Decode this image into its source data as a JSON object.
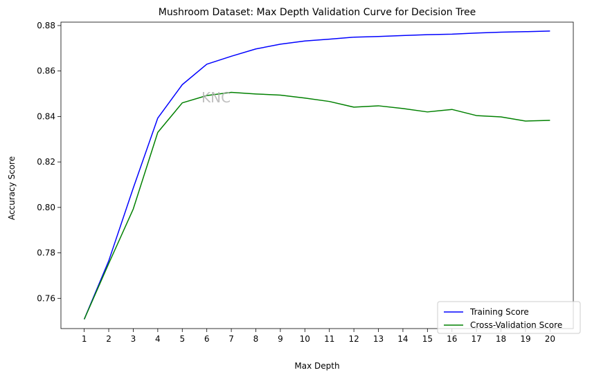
{
  "chart_data": {
    "type": "line",
    "title": "Mushroom Dataset: Max Depth Validation Curve for Decision Tree",
    "xlabel": "Max Depth",
    "ylabel": "Accuracy Score",
    "x": [
      1,
      2,
      3,
      4,
      5,
      6,
      7,
      8,
      9,
      10,
      11,
      12,
      13,
      14,
      15,
      16,
      17,
      18,
      19,
      20
    ],
    "xlim": [
      0.05,
      20.95
    ],
    "ylim": [
      0.7467,
      0.8815
    ],
    "yticks": [
      0.76,
      0.78,
      0.8,
      0.82,
      0.84,
      0.86,
      0.88
    ],
    "ytick_labels": [
      "0.76",
      "0.78",
      "0.80",
      "0.82",
      "0.84",
      "0.86",
      "0.88"
    ],
    "grid": false,
    "legend_position": "lower-right",
    "annotation": "KNC",
    "series": [
      {
        "name": "Training Score",
        "color": "#0000ff",
        "values": [
          0.7508,
          0.7765,
          0.8085,
          0.8393,
          0.854,
          0.863,
          0.8665,
          0.8697,
          0.8718,
          0.8732,
          0.874,
          0.8749,
          0.8752,
          0.8756,
          0.876,
          0.8762,
          0.8767,
          0.8771,
          0.8773,
          0.8776
        ]
      },
      {
        "name": "Cross-Validation Score",
        "color": "#008000",
        "values": [
          0.7508,
          0.7753,
          0.7993,
          0.833,
          0.846,
          0.8492,
          0.8506,
          0.8499,
          0.8494,
          0.8481,
          0.8466,
          0.8441,
          0.8447,
          0.8435,
          0.842,
          0.8431,
          0.8404,
          0.8398,
          0.838,
          0.8383
        ]
      }
    ]
  }
}
